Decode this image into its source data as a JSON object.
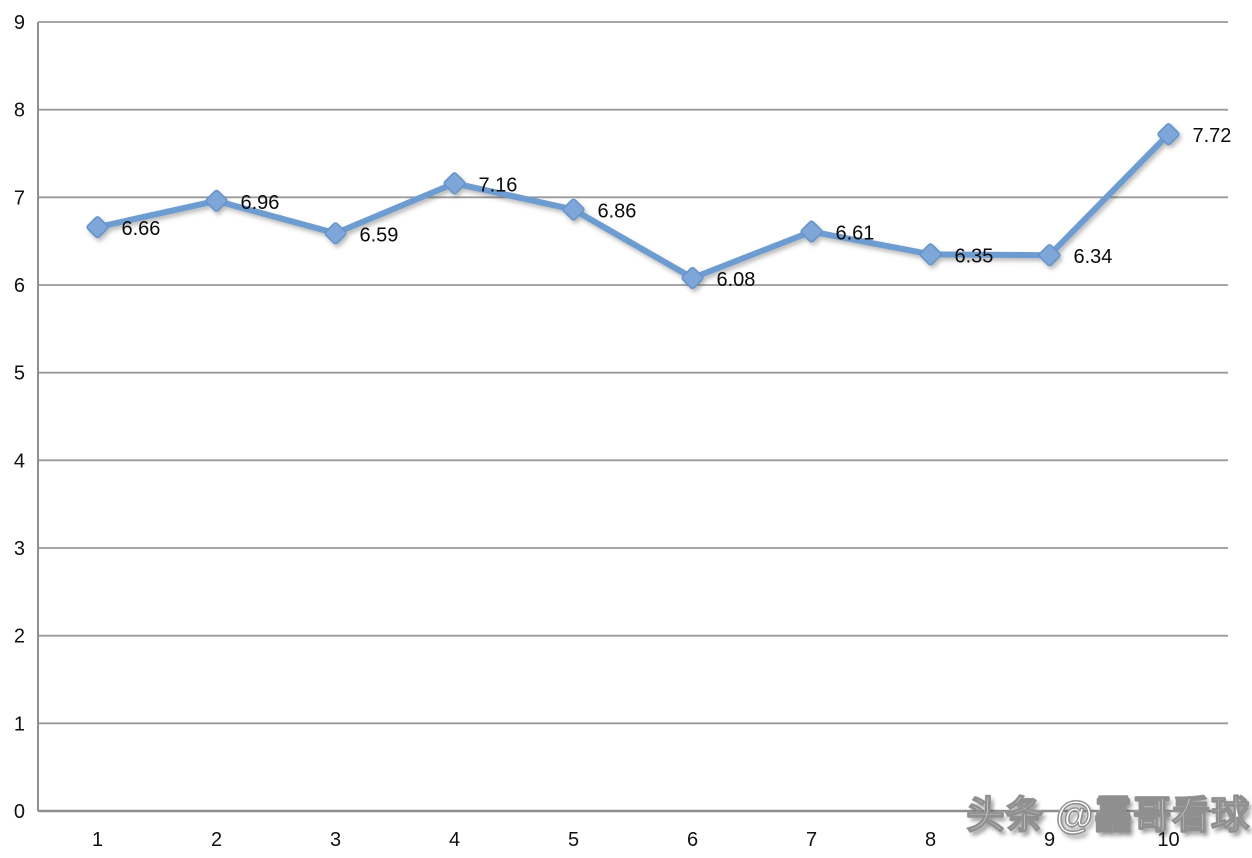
{
  "watermark": {
    "text": "头条 @靐哥看球"
  },
  "chart_data": {
    "type": "line",
    "title": "",
    "xlabel": "",
    "ylabel": "",
    "categories": [
      "1",
      "2",
      "3",
      "4",
      "5",
      "6",
      "7",
      "8",
      "9",
      "10"
    ],
    "values": [
      6.66,
      6.96,
      6.59,
      7.16,
      6.86,
      6.08,
      6.61,
      6.35,
      6.34,
      7.72
    ],
    "point_labels": [
      "6.66",
      "6.96",
      "6.59",
      "7.16",
      "6.86",
      "6.08",
      "6.61",
      "6.35",
      "6.34",
      "7.72"
    ],
    "ylim": [
      0,
      9
    ],
    "yticks": [
      "0",
      "1",
      "2",
      "3",
      "4",
      "5",
      "6",
      "7",
      "8",
      "9"
    ],
    "grid": true,
    "legend": "none",
    "marker_shape": "diamond",
    "colors": {
      "line": "#6D9CD0",
      "marker_fill": "#7EA6D8",
      "marker_stroke": "#6493C8",
      "gridline": "#9A9A9A",
      "axis": "#8F8F8F",
      "tick_text": "#111111",
      "data_label_text": "#0A0A0A"
    }
  }
}
